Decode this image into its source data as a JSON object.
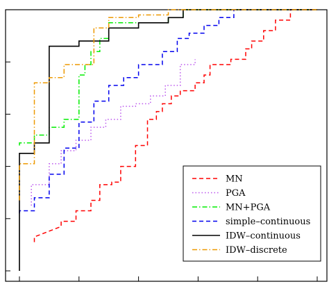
{
  "chart_data": {
    "type": "line",
    "title": "",
    "xlabel": "",
    "ylabel": "",
    "xlim": [
      0,
      105
    ],
    "ylim": [
      0.0,
      1.0
    ],
    "x_ticks": [
      0,
      20,
      40,
      60,
      80,
      100
    ],
    "y_ticks": [
      0.0,
      0.2,
      0.4,
      0.6,
      0.8,
      1.0
    ],
    "grid": false,
    "legend_position": "bottom-right",
    "series": [
      {
        "name": "MN",
        "color": "#ff0000",
        "dash": "dashed",
        "points": [
          [
            5,
            0.11
          ],
          [
            5,
            0.13
          ],
          [
            14,
            0.17
          ],
          [
            14,
            0.19
          ],
          [
            19,
            0.19
          ],
          [
            19,
            0.23
          ],
          [
            24,
            0.23
          ],
          [
            24,
            0.27
          ],
          [
            27,
            0.27
          ],
          [
            27,
            0.33
          ],
          [
            31,
            0.33
          ],
          [
            31,
            0.34
          ],
          [
            34,
            0.34
          ],
          [
            34,
            0.36
          ],
          [
            34,
            0.4
          ],
          [
            39,
            0.4
          ],
          [
            39,
            0.48
          ],
          [
            43,
            0.48
          ],
          [
            43,
            0.58
          ],
          [
            46,
            0.58
          ],
          [
            46,
            0.61
          ],
          [
            48,
            0.61
          ],
          [
            48,
            0.64
          ],
          [
            51,
            0.64
          ],
          [
            51,
            0.67
          ],
          [
            54,
            0.67
          ],
          [
            54,
            0.69
          ],
          [
            59,
            0.69
          ],
          [
            59,
            0.72
          ],
          [
            62,
            0.72
          ],
          [
            62,
            0.75
          ],
          [
            64,
            0.75
          ],
          [
            64,
            0.79
          ],
          [
            71,
            0.79
          ],
          [
            71,
            0.81
          ],
          [
            76,
            0.81
          ],
          [
            76,
            0.85
          ],
          [
            78,
            0.85
          ],
          [
            78,
            0.88
          ],
          [
            82,
            0.88
          ],
          [
            82,
            0.92
          ],
          [
            86,
            0.92
          ],
          [
            86,
            0.96
          ],
          [
            91,
            0.96
          ],
          [
            91,
            1.0
          ],
          [
            100,
            1.0
          ]
        ]
      },
      {
        "name": "PGA",
        "color": "#bb55ee",
        "dash": "dotted",
        "points": [
          [
            4,
            0.25
          ],
          [
            4,
            0.33
          ],
          [
            10,
            0.33
          ],
          [
            10,
            0.41
          ],
          [
            14,
            0.41
          ],
          [
            14,
            0.46
          ],
          [
            19,
            0.46
          ],
          [
            19,
            0.5
          ],
          [
            24,
            0.5
          ],
          [
            24,
            0.55
          ],
          [
            29,
            0.55
          ],
          [
            29,
            0.58
          ],
          [
            34,
            0.58
          ],
          [
            34,
            0.63
          ],
          [
            39,
            0.63
          ],
          [
            39,
            0.64
          ],
          [
            44,
            0.64
          ],
          [
            44,
            0.67
          ],
          [
            49,
            0.67
          ],
          [
            49,
            0.71
          ],
          [
            54,
            0.71
          ],
          [
            54,
            0.79
          ],
          [
            59,
            0.79
          ],
          [
            59,
            0.81
          ]
        ]
      },
      {
        "name": "MN+PGA",
        "color": "#00ee00",
        "dash": "dashdot",
        "points": [
          [
            0,
            0.48
          ],
          [
            0,
            0.49
          ],
          [
            5,
            0.49
          ],
          [
            5,
            0.52
          ],
          [
            10,
            0.52
          ],
          [
            10,
            0.55
          ],
          [
            15,
            0.55
          ],
          [
            15,
            0.58
          ],
          [
            20,
            0.58
          ],
          [
            20,
            0.75
          ],
          [
            22,
            0.75
          ],
          [
            22,
            0.79
          ],
          [
            24,
            0.79
          ],
          [
            24,
            0.84
          ],
          [
            27,
            0.84
          ],
          [
            27,
            0.89
          ],
          [
            30,
            0.89
          ],
          [
            30,
            0.95
          ],
          [
            50,
            0.95
          ],
          [
            50,
            0.97
          ],
          [
            55,
            0.97
          ],
          [
            55,
            1.0
          ],
          [
            100,
            1.0
          ]
        ]
      },
      {
        "name": "simple–continuous",
        "color": "#0000ee",
        "dash": "dashed",
        "points": [
          [
            0,
            0.22
          ],
          [
            0,
            0.23
          ],
          [
            5,
            0.23
          ],
          [
            5,
            0.28
          ],
          [
            10,
            0.28
          ],
          [
            10,
            0.37
          ],
          [
            15,
            0.37
          ],
          [
            15,
            0.47
          ],
          [
            20,
            0.47
          ],
          [
            20,
            0.57
          ],
          [
            25,
            0.57
          ],
          [
            25,
            0.65
          ],
          [
            30,
            0.65
          ],
          [
            30,
            0.71
          ],
          [
            35,
            0.71
          ],
          [
            35,
            0.74
          ],
          [
            40,
            0.74
          ],
          [
            40,
            0.79
          ],
          [
            48,
            0.79
          ],
          [
            48,
            0.84
          ],
          [
            53,
            0.84
          ],
          [
            53,
            0.89
          ],
          [
            57,
            0.89
          ],
          [
            57,
            0.91
          ],
          [
            62,
            0.91
          ],
          [
            62,
            0.94
          ],
          [
            67,
            0.94
          ],
          [
            67,
            0.97
          ],
          [
            72,
            0.97
          ],
          [
            72,
            1.0
          ],
          [
            100,
            1.0
          ]
        ]
      },
      {
        "name": "IDW–continuous",
        "color": "#000000",
        "dash": "solid",
        "points": [
          [
            0,
            0.0
          ],
          [
            0,
            0.45
          ],
          [
            5,
            0.45
          ],
          [
            5,
            0.49
          ],
          [
            10,
            0.49
          ],
          [
            10,
            0.86
          ],
          [
            20,
            0.86
          ],
          [
            20,
            0.88
          ],
          [
            30,
            0.88
          ],
          [
            30,
            0.93
          ],
          [
            40,
            0.93
          ],
          [
            40,
            0.95
          ],
          [
            50,
            0.95
          ],
          [
            50,
            0.97
          ],
          [
            55,
            0.97
          ],
          [
            55,
            1.0
          ],
          [
            100,
            1.0
          ]
        ]
      },
      {
        "name": "IDW–discrete",
        "color": "#ee9900",
        "dash": "dashdot",
        "points": [
          [
            0,
            0.27
          ],
          [
            0,
            0.41
          ],
          [
            5,
            0.41
          ],
          [
            5,
            0.72
          ],
          [
            10,
            0.72
          ],
          [
            10,
            0.74
          ],
          [
            15,
            0.74
          ],
          [
            15,
            0.79
          ],
          [
            25,
            0.79
          ],
          [
            25,
            0.93
          ],
          [
            30,
            0.93
          ],
          [
            30,
            0.97
          ],
          [
            40,
            0.97
          ],
          [
            40,
            0.98
          ],
          [
            50,
            0.98
          ],
          [
            50,
            1.0
          ],
          [
            100,
            1.0
          ]
        ]
      }
    ]
  }
}
